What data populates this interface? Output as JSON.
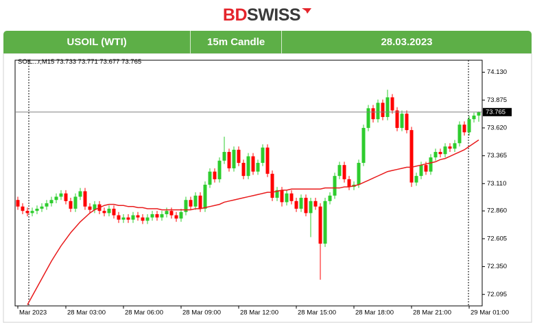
{
  "logo": {
    "part1": "BD",
    "part2": "SWISS"
  },
  "header": {
    "instrument": "USOIL (WTI)",
    "timeframe": "15m Candle",
    "date": "28.03.2023"
  },
  "chart_data": {
    "type": "candlestick",
    "symbol_label": "SOIL...r,M15",
    "up_color": "#2ecc2e",
    "down_color": "#ff0000",
    "ma_color": "#e8191a",
    "ylim": [
      71.99,
      74.24
    ],
    "yticks": [
      {
        "value": 74.13,
        "label": "74.130"
      },
      73.875,
      {
        "value": 73.62,
        "label": "73.620"
      },
      73.365,
      {
        "value": 73.11,
        "label": "73.110"
      },
      {
        "value": 72.86,
        "label": "72.860"
      },
      72.605,
      {
        "value": 72.35,
        "label": "72.350"
      },
      72.095
    ],
    "categories": [
      "Mar 2023",
      null,
      null,
      null,
      null,
      null,
      null,
      null,
      null,
      null,
      "28 Mar 03:00",
      null,
      null,
      null,
      null,
      null,
      null,
      null,
      null,
      null,
      null,
      null,
      "28 Mar 06:00",
      null,
      null,
      null,
      null,
      null,
      null,
      null,
      null,
      null,
      null,
      null,
      "28 Mar 09:00",
      null,
      null,
      null,
      null,
      null,
      null,
      null,
      null,
      null,
      null,
      null,
      "28 Mar 12:00",
      null,
      null,
      null,
      null,
      null,
      null,
      null,
      null,
      null,
      null,
      null,
      "28 Mar 15:00",
      null,
      null,
      null,
      null,
      null,
      null,
      null,
      null,
      null,
      null,
      null,
      "28 Mar 18:00",
      null,
      null,
      null,
      null,
      null,
      null,
      null,
      null,
      null,
      null,
      null,
      "28 Mar 21:00",
      null,
      null,
      null,
      null,
      null,
      null,
      null,
      null,
      null,
      null,
      null,
      "29 Mar 01:00",
      null,
      null
    ],
    "open": [
      72.96,
      72.9,
      72.86,
      72.84,
      72.86,
      72.88,
      72.9,
      72.93,
      72.96,
      72.99,
      73.02,
      72.95,
      72.88,
      72.99,
      73.04,
      72.9,
      72.87,
      72.92,
      72.86,
      72.84,
      72.88,
      72.82,
      72.78,
      72.8,
      72.78,
      72.82,
      72.8,
      72.77,
      72.8,
      72.83,
      72.8,
      72.83,
      72.86,
      72.82,
      72.79,
      72.85,
      72.96,
      72.9,
      73.0,
      72.88,
      73.1,
      73.22,
      73.15,
      73.32,
      73.4,
      73.25,
      73.42,
      73.3,
      73.18,
      73.36,
      73.22,
      73.3,
      73.44,
      73.2,
      72.98,
      73.05,
      72.94,
      73.02,
      72.95,
      72.88,
      72.98,
      72.84,
      72.95,
      72.9,
      72.56,
      72.95,
      73.0,
      73.18,
      73.28,
      73.15,
      73.08,
      73.1,
      73.3,
      73.62,
      73.8,
      73.7,
      73.85,
      73.72,
      73.9,
      73.78,
      73.62,
      73.75,
      73.6,
      73.12,
      73.18,
      73.28,
      73.22,
      73.35,
      73.4,
      73.38,
      73.45,
      73.43,
      73.48,
      73.65,
      73.58,
      73.7,
      73.733
    ],
    "high": [
      72.99,
      72.93,
      72.89,
      72.89,
      72.91,
      72.93,
      72.96,
      72.99,
      73.02,
      73.05,
      73.05,
      72.98,
      73.02,
      73.07,
      73.07,
      72.93,
      72.95,
      72.95,
      72.89,
      72.91,
      72.91,
      72.85,
      72.83,
      72.83,
      72.85,
      72.85,
      72.83,
      72.83,
      72.86,
      72.86,
      72.86,
      72.89,
      72.89,
      72.85,
      72.88,
      72.99,
      72.99,
      73.03,
      73.03,
      73.13,
      73.25,
      73.25,
      73.35,
      73.54,
      73.43,
      73.45,
      73.45,
      73.33,
      73.39,
      73.39,
      73.33,
      73.47,
      73.47,
      73.23,
      73.08,
      73.08,
      73.05,
      73.05,
      72.98,
      73.01,
      73.01,
      72.98,
      72.98,
      72.93,
      72.98,
      73.03,
      73.21,
      73.31,
      73.31,
      73.18,
      73.13,
      73.33,
      73.65,
      73.83,
      73.83,
      73.88,
      73.88,
      73.97,
      73.93,
      73.81,
      73.78,
      73.78,
      73.63,
      73.21,
      73.31,
      73.31,
      73.38,
      73.43,
      73.43,
      73.48,
      73.48,
      73.51,
      73.68,
      73.68,
      73.73,
      73.76,
      73.771
    ],
    "low": [
      72.87,
      72.83,
      72.81,
      72.81,
      72.83,
      72.85,
      72.87,
      72.9,
      72.93,
      72.96,
      72.92,
      72.85,
      72.85,
      72.96,
      72.87,
      72.84,
      72.84,
      72.83,
      72.81,
      72.81,
      72.79,
      72.75,
      72.75,
      72.75,
      72.75,
      72.77,
      72.74,
      72.74,
      72.77,
      72.77,
      72.77,
      72.8,
      72.79,
      72.76,
      72.76,
      72.82,
      72.87,
      72.87,
      72.85,
      72.85,
      73.07,
      73.12,
      73.12,
      73.29,
      73.22,
      73.22,
      73.27,
      73.15,
      73.15,
      73.19,
      73.19,
      73.27,
      73.17,
      72.95,
      72.95,
      72.9,
      72.91,
      72.92,
      72.85,
      72.85,
      72.81,
      72.62,
      72.87,
      72.23,
      72.53,
      72.92,
      72.97,
      73.15,
      73.12,
      73.05,
      73.05,
      73.07,
      73.27,
      73.59,
      73.67,
      73.67,
      73.69,
      73.69,
      73.75,
      73.59,
      73.59,
      73.57,
      73.08,
      73.09,
      73.15,
      73.19,
      73.19,
      73.32,
      73.35,
      73.35,
      73.4,
      73.4,
      73.45,
      73.55,
      73.55,
      73.67,
      73.677
    ],
    "close": [
      72.9,
      72.86,
      72.84,
      72.86,
      72.88,
      72.9,
      72.93,
      72.96,
      72.99,
      73.02,
      72.95,
      72.88,
      72.99,
      73.04,
      72.9,
      72.87,
      72.92,
      72.86,
      72.84,
      72.88,
      72.82,
      72.78,
      72.8,
      72.78,
      72.82,
      72.8,
      72.77,
      72.8,
      72.83,
      72.8,
      72.83,
      72.86,
      72.82,
      72.79,
      72.85,
      72.96,
      72.9,
      73.0,
      72.88,
      73.1,
      73.22,
      73.15,
      73.32,
      73.4,
      73.25,
      73.42,
      73.3,
      73.18,
      73.36,
      73.22,
      73.3,
      73.44,
      73.2,
      72.98,
      73.05,
      72.94,
      73.02,
      72.95,
      72.88,
      72.98,
      72.84,
      72.95,
      72.9,
      72.56,
      72.95,
      73.0,
      73.18,
      73.28,
      73.15,
      73.08,
      73.1,
      73.3,
      73.62,
      73.8,
      73.7,
      73.85,
      73.72,
      73.9,
      73.78,
      73.62,
      73.75,
      73.6,
      73.12,
      73.18,
      73.28,
      73.22,
      73.35,
      73.4,
      73.38,
      73.45,
      73.43,
      73.48,
      73.65,
      73.58,
      73.7,
      73.733,
      73.765
    ],
    "moving_average": [
      null,
      null,
      72.0,
      72.08,
      72.16,
      72.24,
      72.32,
      72.4,
      72.47,
      72.54,
      72.6,
      72.66,
      72.71,
      72.76,
      72.8,
      72.84,
      72.87,
      72.89,
      72.91,
      72.92,
      72.92,
      72.91,
      72.91,
      72.9,
      72.9,
      72.89,
      72.89,
      72.88,
      72.88,
      72.88,
      72.87,
      72.87,
      72.87,
      72.87,
      72.87,
      72.87,
      72.87,
      72.88,
      72.88,
      72.89,
      72.9,
      72.91,
      72.92,
      72.94,
      72.95,
      72.96,
      72.97,
      72.98,
      72.99,
      73.0,
      73.01,
      73.02,
      73.03,
      73.03,
      73.04,
      73.05,
      73.05,
      73.06,
      73.06,
      73.06,
      73.06,
      73.06,
      73.06,
      73.06,
      73.07,
      73.07,
      73.07,
      73.07,
      73.08,
      73.08,
      73.09,
      73.1,
      73.12,
      73.14,
      73.16,
      73.18,
      73.2,
      73.22,
      73.23,
      73.24,
      73.25,
      73.26,
      73.26,
      73.27,
      73.28,
      73.29,
      73.3,
      73.31,
      73.33,
      73.34,
      73.36,
      73.38,
      73.4,
      73.42,
      73.45,
      73.48,
      73.51
    ]
  }
}
